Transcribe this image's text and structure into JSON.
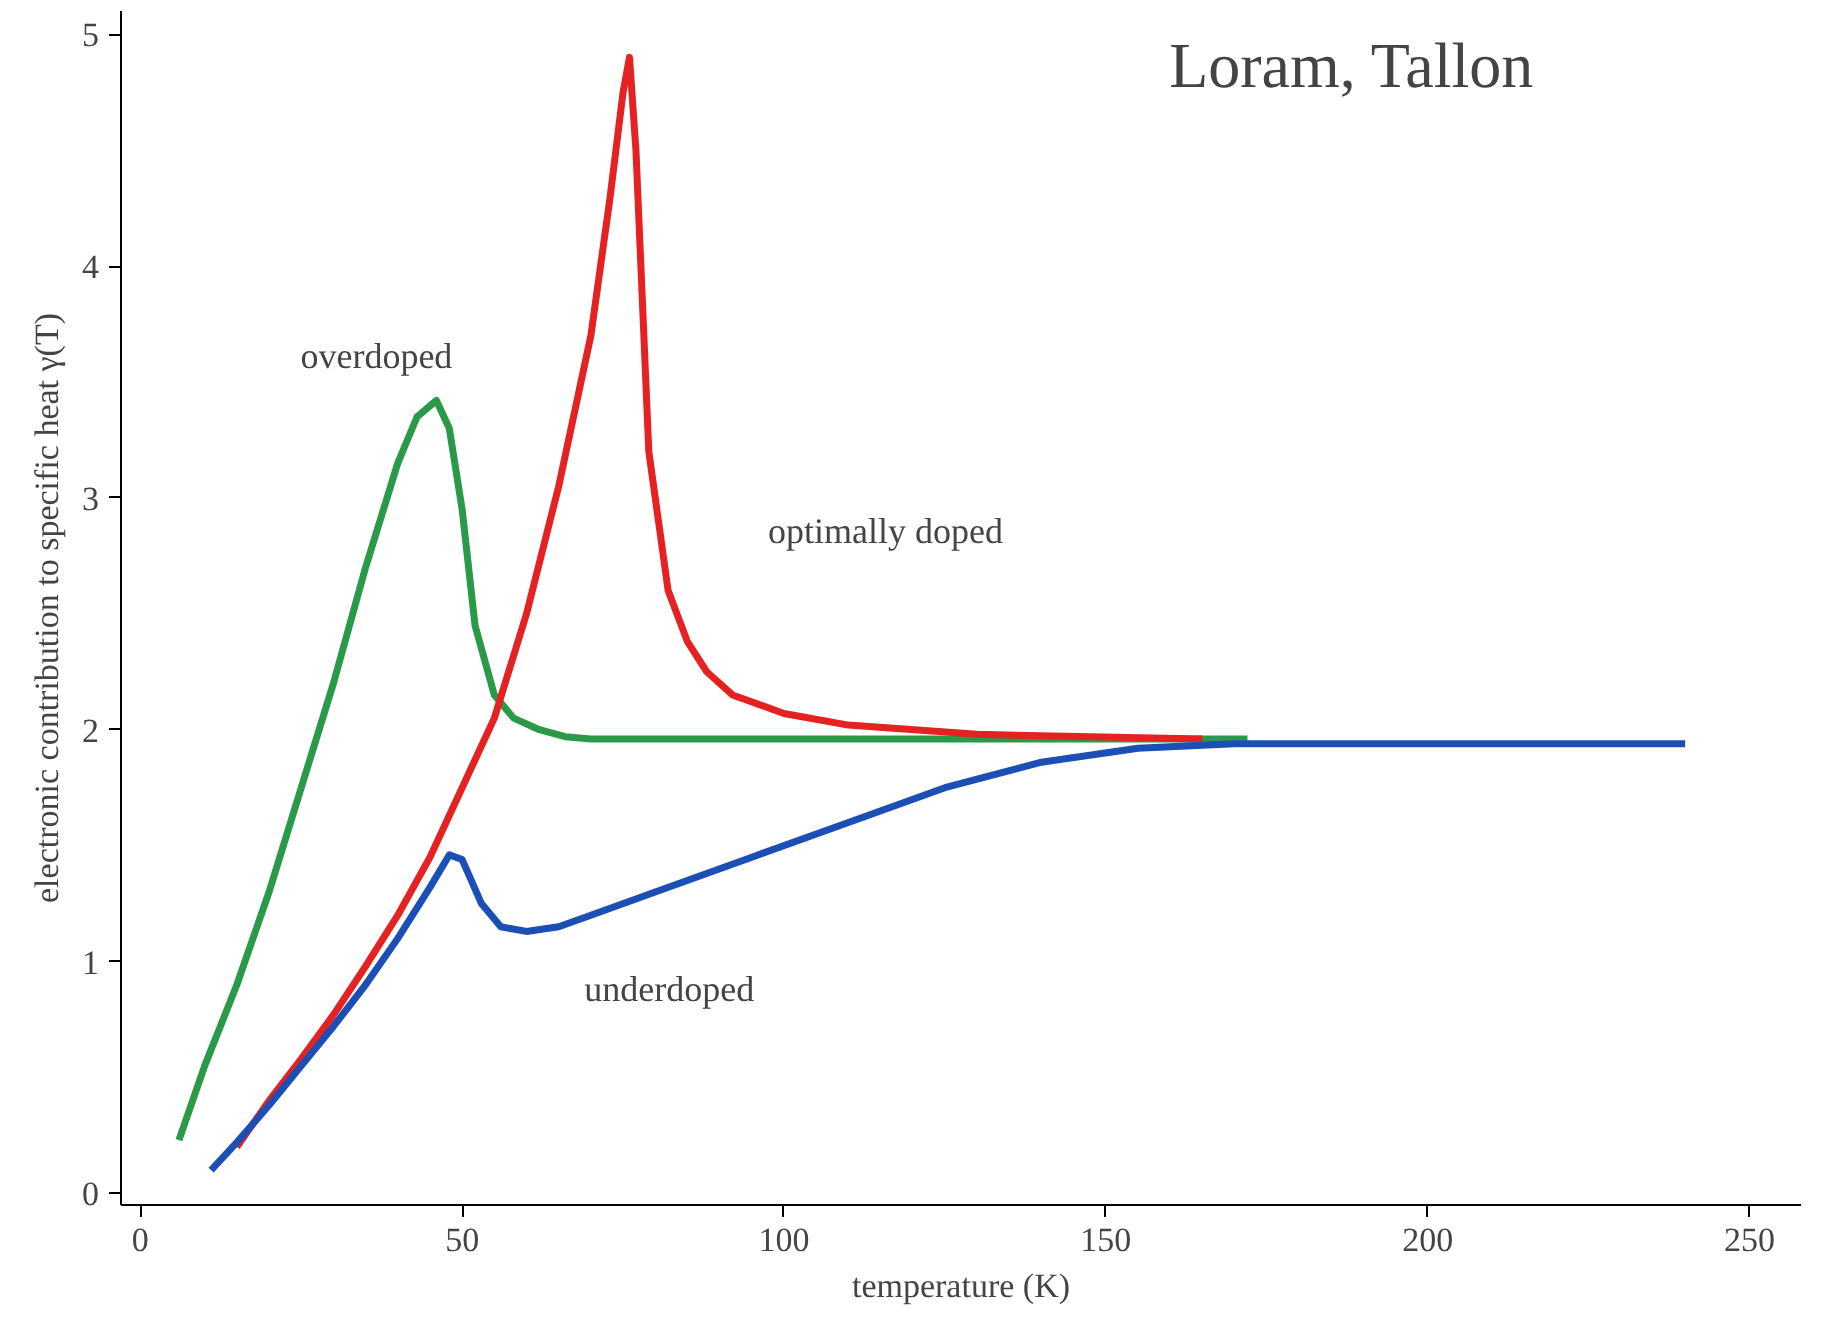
{
  "chart_data": {
    "type": "line",
    "xlabel": "temperature (K)",
    "ylabel": "electronic contribution to specific heat γ(T)",
    "xlim": [
      -3,
      258
    ],
    "ylim": [
      -0.05,
      5.1
    ],
    "xticks": [
      0,
      50,
      100,
      150,
      200,
      250
    ],
    "yticks": [
      0,
      1,
      2,
      3,
      4,
      5
    ],
    "grid": false,
    "legend": false,
    "marker": "none",
    "line_style": "solid",
    "annotations": [
      "Loram, Tallon"
    ],
    "series": [
      {
        "name": "overdoped",
        "color": "#2a9a48",
        "x": [
          6,
          10,
          15,
          20,
          25,
          30,
          35,
          40,
          43,
          46,
          48,
          50,
          52,
          55,
          58,
          62,
          66,
          70,
          80,
          100,
          130,
          172
        ],
        "values": [
          0.23,
          0.55,
          0.9,
          1.3,
          1.75,
          2.2,
          2.7,
          3.15,
          3.35,
          3.42,
          3.3,
          2.95,
          2.45,
          2.15,
          2.05,
          2.0,
          1.97,
          1.96,
          1.96,
          1.96,
          1.96,
          1.96
        ]
      },
      {
        "name": "optimally doped",
        "color": "#e52222",
        "x": [
          15,
          20,
          25,
          30,
          35,
          40,
          45,
          50,
          55,
          60,
          65,
          70,
          73,
          75,
          76,
          77,
          79,
          82,
          85,
          88,
          92,
          100,
          110,
          130,
          165
        ],
        "values": [
          0.2,
          0.4,
          0.58,
          0.77,
          0.98,
          1.2,
          1.45,
          1.75,
          2.05,
          2.5,
          3.05,
          3.7,
          4.3,
          4.75,
          4.9,
          4.5,
          3.2,
          2.6,
          2.38,
          2.25,
          2.15,
          2.07,
          2.02,
          1.98,
          1.96
        ]
      },
      {
        "name": "underdoped",
        "color": "#1c4fb5",
        "x": [
          11,
          15,
          20,
          25,
          30,
          35,
          40,
          45,
          48,
          50,
          53,
          56,
          60,
          65,
          70,
          80,
          95,
          110,
          125,
          140,
          155,
          170,
          200,
          240
        ],
        "values": [
          0.1,
          0.22,
          0.38,
          0.55,
          0.72,
          0.9,
          1.1,
          1.32,
          1.46,
          1.44,
          1.25,
          1.15,
          1.13,
          1.15,
          1.2,
          1.3,
          1.45,
          1.6,
          1.75,
          1.86,
          1.92,
          1.94,
          1.94,
          1.94
        ]
      }
    ]
  }
}
